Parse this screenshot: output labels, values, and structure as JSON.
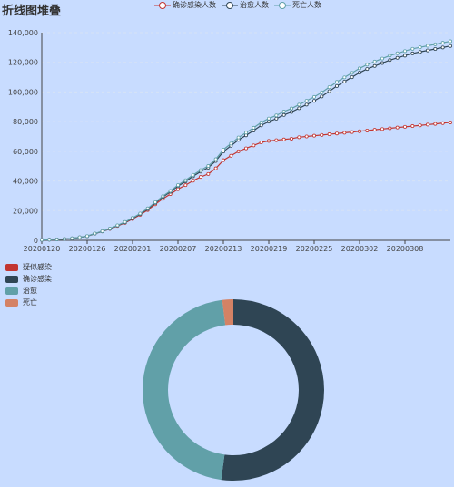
{
  "title": "折线图堆叠",
  "colors": {
    "confirmed": "#c23531",
    "cured": "#2f4554",
    "dead": "#61a0a8",
    "suspected": "#d48265",
    "grid": "#d6e2f6",
    "axis": "#444444"
  },
  "top_legend": [
    {
      "label": "确诊感染人数",
      "color": "#c23531",
      "icon": "circle-line-icon"
    },
    {
      "label": "治愈人数",
      "color": "#2f4554",
      "icon": "circle-line-icon"
    },
    {
      "label": "死亡人数",
      "color": "#61a0a8",
      "icon": "circle-line-icon"
    }
  ],
  "pie_legend": [
    {
      "label": "疑似感染",
      "color": "#c23531"
    },
    {
      "label": "确诊感染",
      "color": "#2f4554"
    },
    {
      "label": "治愈",
      "color": "#61a0a8"
    },
    {
      "label": "死亡",
      "color": "#d48265"
    }
  ],
  "chart_data": [
    {
      "type": "line",
      "stacked": true,
      "title": "折线图堆叠",
      "x_tick_labels": [
        "20200120",
        "20200126",
        "20200201",
        "20200207",
        "20200213",
        "20200219",
        "20200225",
        "20200302",
        "20200308"
      ],
      "y_tick_labels": [
        "0",
        "20,000",
        "40,000",
        "60,000",
        "80,000",
        "100,000",
        "120,000",
        "140,000"
      ],
      "ylim": [
        0,
        140000
      ],
      "grid": true,
      "legend": "top-center",
      "x": [
        "20200120",
        "20200121",
        "20200122",
        "20200123",
        "20200124",
        "20200125",
        "20200126",
        "20200127",
        "20200128",
        "20200129",
        "20200130",
        "20200131",
        "20200201",
        "20200202",
        "20200203",
        "20200204",
        "20200205",
        "20200206",
        "20200207",
        "20200208",
        "20200209",
        "20200210",
        "20200211",
        "20200212",
        "20200213",
        "20200214",
        "20200215",
        "20200216",
        "20200217",
        "20200218",
        "20200219",
        "20200220",
        "20200221",
        "20200222",
        "20200223",
        "20200224",
        "20200225",
        "20200226",
        "20200227",
        "20200228",
        "20200229",
        "20200301",
        "20200302",
        "20200303",
        "20200304",
        "20200305",
        "20200306",
        "20200307",
        "20200308",
        "20200309",
        "20200310",
        "20200311",
        "20200312",
        "20200313",
        "20200314"
      ],
      "series": [
        {
          "name": "确诊感染人数",
          "values": [
            300,
            450,
            600,
            850,
            1300,
            2000,
            2750,
            4500,
            6000,
            7700,
            9700,
            11800,
            14400,
            17200,
            20400,
            24300,
            28000,
            31200,
            34500,
            37200,
            40200,
            42700,
            44700,
            48500,
            54000,
            57000,
            60000,
            62000,
            64000,
            66000,
            67000,
            67500,
            68000,
            68500,
            69500,
            70000,
            70500,
            71000,
            71500,
            72000,
            72500,
            73000,
            73500,
            74000,
            74500,
            75000,
            75500,
            76000,
            76500,
            77000,
            77500,
            78000,
            78500,
            79000,
            79500
          ]
        },
        {
          "name": "治愈人数",
          "values": [
            0,
            0,
            0,
            0,
            0,
            0,
            0,
            0,
            0,
            100,
            200,
            300,
            400,
            500,
            700,
            900,
            1200,
            1500,
            2000,
            2500,
            3000,
            3600,
            4300,
            5000,
            5800,
            6700,
            7700,
            8800,
            10000,
            11500,
            13000,
            14500,
            16500,
            18000,
            19500,
            21500,
            23500,
            26000,
            29000,
            32000,
            34500,
            37000,
            39500,
            41500,
            43000,
            44500,
            46000,
            47000,
            48000,
            49000,
            49500,
            50000,
            50500,
            51000,
            51500
          ]
        },
        {
          "name": "死亡人数",
          "values": [
            10,
            15,
            20,
            30,
            40,
            60,
            80,
            110,
            130,
            170,
            210,
            260,
            300,
            360,
            430,
            490,
            560,
            640,
            720,
            810,
            900,
            1000,
            1110,
            1200,
            1350,
            1500,
            1650,
            1770,
            1860,
            1980,
            2100,
            2200,
            2300,
            2350,
            2450,
            2600,
            2650,
            2700,
            2750,
            2800,
            2830,
            2870,
            2910,
            2940,
            2980,
            3010,
            3040,
            3060,
            3080,
            3100,
            3120,
            3140,
            3160,
            3170,
            3180
          ]
        }
      ]
    },
    {
      "type": "pie",
      "variant": "donut",
      "series": [
        {
          "name": "疑似感染",
          "value": 0
        },
        {
          "name": "确诊感染",
          "value": 80700
        },
        {
          "name": "治愈",
          "value": 71000
        },
        {
          "name": "死亡",
          "value": 3100
        }
      ]
    }
  ]
}
